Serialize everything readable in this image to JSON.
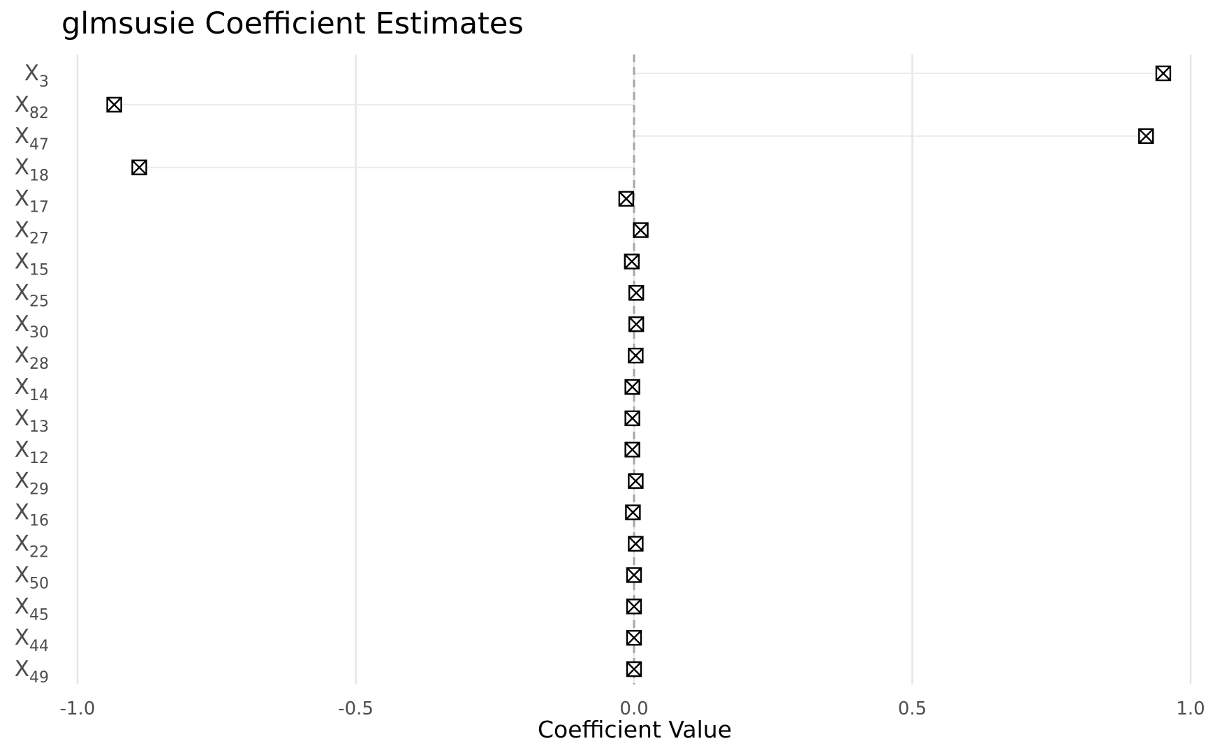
{
  "chart_data": {
    "type": "scatter",
    "title": "glmsusie Coefficient Estimates",
    "xlabel": "Coefficient Value",
    "ylabel": "",
    "xlim": [
      -1.0,
      1.0
    ],
    "xticks": [
      -1.0,
      -0.5,
      0.0,
      0.5,
      1.0
    ],
    "xtick_labels": [
      "-1.0",
      "-0.5",
      "0.0",
      "0.5",
      "1.0"
    ],
    "grid": true,
    "reference_line": {
      "x": 0.0,
      "style": "dashed",
      "color": "#a6a6a6"
    },
    "marker": "square-x",
    "colors": {
      "grid": "#e6e6e6",
      "segment": "#ebebeb",
      "marker": "#000000",
      "ref": "#a6a6a6",
      "tick": "#4d4d4d"
    },
    "points": [
      {
        "label": "X",
        "sub": "3",
        "value": 0.951
      },
      {
        "label": "X",
        "sub": "82",
        "value": -0.934
      },
      {
        "label": "X",
        "sub": "47",
        "value": 0.92
      },
      {
        "label": "X",
        "sub": "18",
        "value": -0.889
      },
      {
        "label": "X",
        "sub": "17",
        "value": -0.014
      },
      {
        "label": "X",
        "sub": "27",
        "value": 0.012
      },
      {
        "label": "X",
        "sub": "15",
        "value": -0.004
      },
      {
        "label": "X",
        "sub": "25",
        "value": 0.004
      },
      {
        "label": "X",
        "sub": "30",
        "value": 0.004
      },
      {
        "label": "X",
        "sub": "28",
        "value": 0.003
      },
      {
        "label": "X",
        "sub": "14",
        "value": -0.003
      },
      {
        "label": "X",
        "sub": "13",
        "value": -0.003
      },
      {
        "label": "X",
        "sub": "12",
        "value": -0.003
      },
      {
        "label": "X",
        "sub": "29",
        "value": 0.003
      },
      {
        "label": "X",
        "sub": "16",
        "value": -0.002
      },
      {
        "label": "X",
        "sub": "22",
        "value": 0.003
      },
      {
        "label": "X",
        "sub": "50",
        "value": 0.0
      },
      {
        "label": "X",
        "sub": "45",
        "value": 0.0
      },
      {
        "label": "X",
        "sub": "44",
        "value": 0.0
      },
      {
        "label": "X",
        "sub": "49",
        "value": 0.0
      }
    ]
  }
}
